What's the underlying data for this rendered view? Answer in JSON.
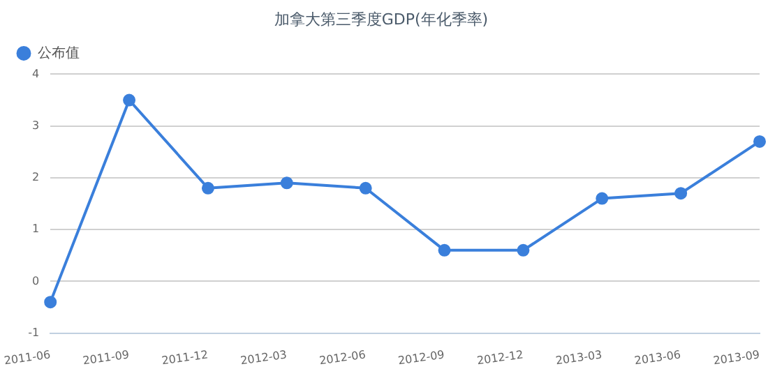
{
  "chart_data": {
    "type": "line",
    "title": "加拿大第三季度GDP(年化季率)",
    "categories": [
      "2011-06",
      "2011-09",
      "2011-12",
      "2012-03",
      "2012-06",
      "2012-09",
      "2012-12",
      "2013-03",
      "2013-06",
      "2013-09"
    ],
    "series": [
      {
        "name": "公布值",
        "color": "#3a7fdb",
        "values": [
          -0.4,
          3.5,
          1.8,
          1.9,
          1.8,
          0.6,
          0.6,
          1.6,
          1.7,
          2.7
        ]
      }
    ],
    "ylim": [
      -1,
      4
    ],
    "yticks": [
      -1,
      0,
      1,
      2,
      3,
      4
    ],
    "grid": "y",
    "legend": "top left",
    "marker": "circle",
    "line_style": "solid"
  }
}
